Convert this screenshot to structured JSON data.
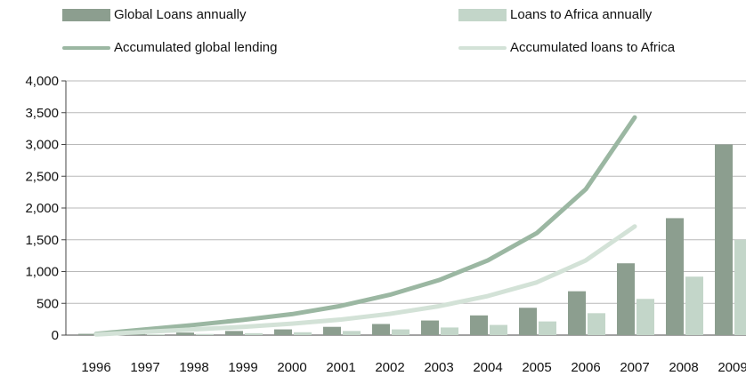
{
  "chart_data": {
    "type": "bar",
    "categories": [
      "1996",
      "1997",
      "1998",
      "1999",
      "2000",
      "2001",
      "2002",
      "2003",
      "2004",
      "2005",
      "2006",
      "2007",
      "2008",
      "2009"
    ],
    "series": [
      {
        "name": "Global Loans annually",
        "kind": "bar",
        "color": "#8c9e8f",
        "values": [
          20,
          25,
          40,
          65,
          90,
          130,
          175,
          230,
          310,
          430,
          690,
          1130,
          1840,
          3000
        ]
      },
      {
        "name": "Loans to Africa annually",
        "kind": "bar",
        "color": "#c3d6c9",
        "values": [
          8,
          12,
          18,
          30,
          45,
          65,
          90,
          120,
          160,
          215,
          345,
          570,
          920,
          1500
        ]
      },
      {
        "name": "Accumulated global lending",
        "kind": "line",
        "color": "#9bb7a2",
        "values": [
          20,
          90,
          160,
          240,
          330,
          460,
          635,
          865,
          1175,
          1605,
          2295,
          3425,
          null,
          null
        ]
      },
      {
        "name": "Accumulated loans to Africa",
        "kind": "line",
        "color": "#d3e2d7",
        "values": [
          10,
          50,
          90,
          130,
          180,
          245,
          335,
          455,
          615,
          830,
          1175,
          1710,
          null,
          null
        ]
      }
    ],
    "ylim": [
      0,
      4000
    ],
    "yticks": [
      0,
      500,
      1000,
      1500,
      2000,
      2500,
      3000,
      3500,
      4000
    ],
    "ytick_labels": [
      "0",
      "500",
      "1,000",
      "1,500",
      "2,000",
      "2,500",
      "3,000",
      "3,500",
      "4,000"
    ],
    "grid": true,
    "legend_position": "top"
  },
  "legend": {
    "items": [
      {
        "label": "Global Loans annually"
      },
      {
        "label": "Loans to Africa annually"
      },
      {
        "label": "Accumulated global lending"
      },
      {
        "label": "Accumulated loans to Africa"
      }
    ]
  }
}
